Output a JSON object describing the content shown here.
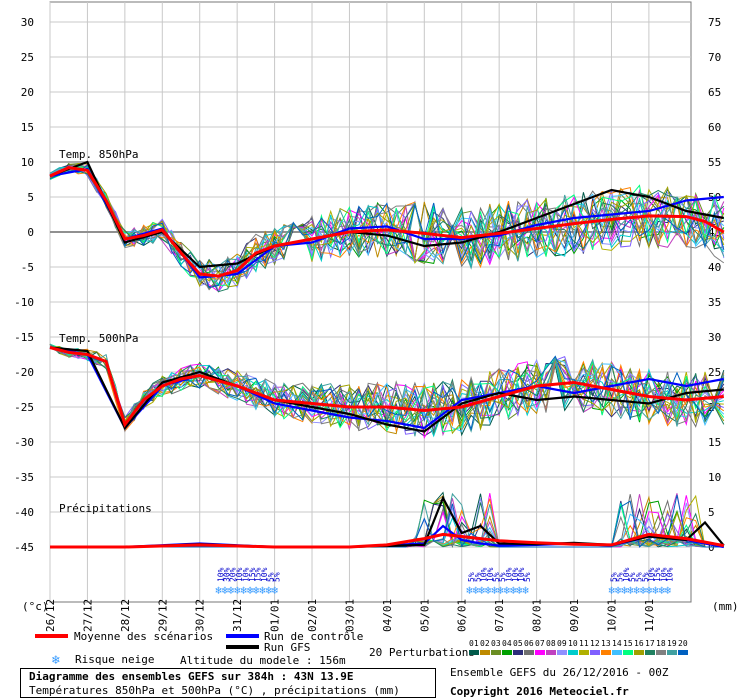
{
  "chart_data": {
    "type": "line",
    "title": "Diagramme des ensembles GEFS sur 384h : 43N 13.9E",
    "subtitle": "Températures 850hPa et 500hPa (°C) , précipitations (mm)",
    "y_axis_left_unit": "(°c)",
    "y_axis_right_unit": "(mm)",
    "ylim": [
      -45,
      30
    ],
    "y_ticks_left": [
      30,
      25,
      20,
      15,
      10,
      5,
      0,
      -5,
      -10,
      -15,
      -20,
      -25,
      -30,
      -35,
      -40,
      -45
    ],
    "y_ticks_right": [
      75,
      70,
      65,
      60,
      55,
      50,
      45,
      40,
      35,
      30,
      25,
      20,
      15,
      10,
      5,
      0
    ],
    "date_labels": [
      "26/12",
      "27/12",
      "28/12",
      "29/12",
      "30/12",
      "31/12",
      "01/01",
      "02/01",
      "03/01",
      "04/01",
      "05/01",
      "06/01",
      "07/01",
      "08/01",
      "09/01",
      "10/01",
      "11/01"
    ],
    "panel_labels": [
      "Temp. 850hPa",
      "Temp. 500hPa",
      "Précipitations"
    ],
    "snow_risk": [
      {
        "label": "10%",
        "x": 4.55
      },
      {
        "label": "30%",
        "x": 4.72
      },
      {
        "label": "20%",
        "x": 4.88
      },
      {
        "label": "10%",
        "x": 5.05
      },
      {
        "label": "10%",
        "x": 5.22
      },
      {
        "label": "15%",
        "x": 5.39
      },
      {
        "label": "15%",
        "x": 5.55
      },
      {
        "label": "10%",
        "x": 5.72
      },
      {
        "label": "5%",
        "x": 5.89
      },
      {
        "label": "5%",
        "x": 6.05
      },
      {
        "label": "5%",
        "x": 11.25
      },
      {
        "label": "5%",
        "x": 11.42
      },
      {
        "label": "10%",
        "x": 11.58
      },
      {
        "label": "10%",
        "x": 11.75
      },
      {
        "label": "5%",
        "x": 11.92
      },
      {
        "label": "5%",
        "x": 12.08
      },
      {
        "label": "10%",
        "x": 12.25
      },
      {
        "label": "10%",
        "x": 12.42
      },
      {
        "label": "10%",
        "x": 12.58
      },
      {
        "label": "5%",
        "x": 12.75
      },
      {
        "label": "5%",
        "x": 15.05
      },
      {
        "label": "5%",
        "x": 15.22
      },
      {
        "label": "10%",
        "x": 15.39
      },
      {
        "label": "5%",
        "x": 15.55
      },
      {
        "label": "5%",
        "x": 15.72
      },
      {
        "label": "5%",
        "x": 15.89
      },
      {
        "label": "10%",
        "x": 16.05
      },
      {
        "label": "15%",
        "x": 16.22
      },
      {
        "label": "10%",
        "x": 16.39
      },
      {
        "label": "10%",
        "x": 16.55
      }
    ],
    "series": [
      {
        "name": "Moyenne des scénarios (850hPa)",
        "color": "#ff0000",
        "x": [
          0,
          0.5,
          1,
          1.5,
          2,
          2.5,
          3,
          3.5,
          4,
          4.5,
          5,
          5.5,
          6,
          7,
          8,
          9,
          10,
          11,
          12,
          13,
          14,
          15,
          16,
          17,
          17.5,
          18
        ],
        "values": [
          8,
          9.2,
          8.8,
          4.5,
          -1,
          -0.5,
          0.3,
          -3,
          -6,
          -6.3,
          -5.5,
          -3,
          -2,
          -1,
          0,
          0.3,
          -0.2,
          -0.8,
          -0.2,
          0.5,
          1.2,
          1.8,
          2.3,
          2.2,
          1.5,
          0
        ]
      },
      {
        "name": "Run de contrôle (850hPa)",
        "color": "#0000ff",
        "x": [
          0,
          1,
          2,
          3,
          4,
          5,
          6,
          7,
          8,
          9,
          10,
          11,
          12,
          13,
          14,
          15,
          16,
          17,
          18
        ],
        "values": [
          8,
          9,
          -1,
          0.5,
          -6.5,
          -6,
          -2,
          -1.5,
          0.5,
          0.8,
          -1,
          -1,
          -0.5,
          1,
          2,
          2.5,
          3,
          4.5,
          5
        ]
      },
      {
        "name": "Run GFS (850hPa)",
        "color": "#000000",
        "x": [
          0,
          1,
          2,
          3,
          4,
          5,
          6,
          7,
          8,
          9,
          10,
          11,
          12,
          13,
          14,
          15,
          16,
          17,
          18
        ],
        "values": [
          8,
          10,
          -1.5,
          0,
          -5,
          -4.5,
          -2,
          -1,
          0,
          -0.5,
          -2,
          -1.5,
          0,
          2,
          4,
          6,
          5,
          3,
          2
        ]
      },
      {
        "name": "Moyenne des scénarios (500hPa)",
        "color": "#ff0000",
        "x": [
          0,
          0.5,
          1,
          1.5,
          2,
          2.5,
          3,
          3.5,
          4,
          5,
          6,
          7,
          8,
          9,
          10,
          11,
          12,
          13,
          14,
          15,
          16,
          17,
          18
        ],
        "values": [
          -16.5,
          -17.2,
          -17.5,
          -18.5,
          -27.5,
          -24,
          -22,
          -21,
          -20.5,
          -22,
          -24,
          -24.5,
          -25,
          -25,
          -25.5,
          -25,
          -23.5,
          -22,
          -21.5,
          -22.5,
          -23.5,
          -24,
          -23.5
        ]
      },
      {
        "name": "Run de contrôle (500hPa)",
        "color": "#0000ff",
        "x": [
          0,
          1,
          2,
          3,
          4,
          5,
          6,
          7,
          8,
          9,
          10,
          11,
          12,
          13,
          14,
          15,
          16,
          17,
          18
        ],
        "values": [
          -16.5,
          -17.5,
          -28,
          -22,
          -20.5,
          -22,
          -24.5,
          -25.5,
          -26.5,
          -27,
          -28,
          -24,
          -23,
          -22,
          -23,
          -22,
          -21,
          -22,
          -21
        ]
      },
      {
        "name": "Run GFS (500hPa)",
        "color": "#000000",
        "x": [
          0,
          1,
          2,
          3,
          4,
          5,
          6,
          7,
          8,
          9,
          10,
          11,
          12,
          13,
          14,
          15,
          16,
          17,
          18
        ],
        "values": [
          -16.5,
          -17,
          -28,
          -21.5,
          -20,
          -22,
          -24,
          -25,
          -26,
          -27.5,
          -28.5,
          -24.5,
          -23,
          -24,
          -23.5,
          -24,
          -24.5,
          -23,
          -22.5
        ]
      },
      {
        "name": "Moyenne des scénarios (précipitations)",
        "color": "#ff0000",
        "x": [
          0,
          2,
          4,
          6,
          8,
          9,
          10,
          10.5,
          11,
          12,
          13,
          14,
          15,
          16,
          17,
          18
        ],
        "values": [
          0,
          0,
          0.3,
          0,
          0,
          0.3,
          1.2,
          1.8,
          1.5,
          0.9,
          0.6,
          0.4,
          0.3,
          1.8,
          1.2,
          0.2
        ]
      },
      {
        "name": "Run de contrôle (précipitations)",
        "color": "#0000ff",
        "x": [
          0,
          2,
          4,
          6,
          8,
          10,
          10.5,
          11,
          11.5,
          12,
          13,
          14,
          15,
          16,
          17,
          18
        ],
        "values": [
          0,
          0,
          0.5,
          0,
          0,
          0.5,
          3,
          1,
          0.5,
          0.2,
          0.3,
          0.5,
          0.2,
          1.5,
          1,
          0
        ]
      },
      {
        "name": "Run GFS (précipitations)",
        "color": "#000000",
        "x": [
          0,
          2,
          4,
          6,
          8,
          10,
          10.5,
          11,
          11.5,
          12,
          13,
          14,
          15,
          16,
          17,
          17.5,
          18
        ],
        "values": [
          0,
          0,
          0.4,
          0,
          0,
          0.3,
          7,
          2,
          3,
          0.5,
          0.4,
          0.6,
          0.3,
          1.5,
          1,
          3.5,
          0.2
        ]
      }
    ],
    "ensemble_colors": [
      "#005a4a",
      "#be8a00",
      "#6b8e23",
      "#00a000",
      "#2d2d7a",
      "#707070",
      "#ff00ff",
      "#c040c0",
      "#9090ff",
      "#00cccc",
      "#b0b000",
      "#8060ff",
      "#ff8000",
      "#40c0ff",
      "#00ff80",
      "#a0a000",
      "#208060",
      "#808080",
      "#40a0a0",
      "#0060c0"
    ],
    "legend": {
      "mean": "Moyenne des scénarios",
      "control": "Run de contrôle",
      "gfs": "Run GFS",
      "snow": "Risque neige",
      "altitude": "Altitude du modele : 156m",
      "perturbations": "20 Perturbations",
      "perturbation_numbers": [
        "01",
        "02",
        "03",
        "04",
        "05",
        "06",
        "07",
        "08",
        "09",
        "10",
        "11",
        "12",
        "13",
        "14",
        "15",
        "16",
        "17",
        "18",
        "19",
        "20"
      ]
    },
    "footer": {
      "ensemble": "Ensemble GEFS du 26/12/2016 - 00Z",
      "copyright": "Copyright 2016 Meteociel.fr"
    }
  }
}
